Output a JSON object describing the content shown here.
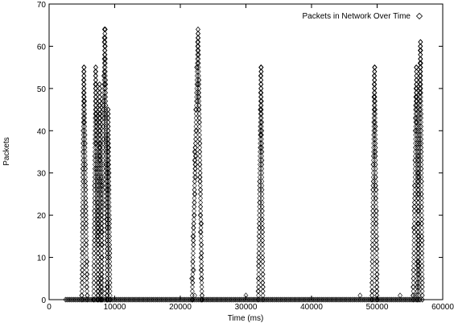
{
  "chart_data": {
    "type": "scatter",
    "title": "",
    "xlabel": "Time (ms)",
    "ylabel": "Packets",
    "xlim": [
      0,
      60000
    ],
    "ylim": [
      0,
      70
    ],
    "x_ticks": [
      0,
      10000,
      20000,
      30000,
      40000,
      50000,
      60000
    ],
    "y_ticks": [
      0,
      10,
      20,
      30,
      40,
      50,
      60,
      70
    ],
    "grid": false,
    "legend_position": "top-right",
    "marker": "diamond",
    "series": [
      {
        "name": "Packets in Network Over Time",
        "bursts": [
          {
            "start": 5000,
            "peak_time": 5300,
            "end": 5800,
            "peak": 55
          },
          {
            "start": 6800,
            "peak_time": 7100,
            "end": 7500,
            "peak": 55
          },
          {
            "start": 7400,
            "peak_time": 7700,
            "end": 8100,
            "peak": 51
          },
          {
            "start": 7900,
            "peak_time": 8500,
            "end": 8900,
            "peak": 64
          },
          {
            "start": 8800,
            "peak_time": 9000,
            "end": 9300,
            "peak": 45
          },
          {
            "start": 21800,
            "peak_time": 22700,
            "end": 23300,
            "peak": 64
          },
          {
            "start": 31900,
            "peak_time": 32300,
            "end": 32600,
            "peak": 55
          },
          {
            "start": 49200,
            "peak_time": 49600,
            "end": 50000,
            "peak": 55
          },
          {
            "start": 55500,
            "peak_time": 56000,
            "end": 56400,
            "peak": 55
          },
          {
            "start": 56100,
            "peak_time": 56600,
            "end": 56900,
            "peak": 61
          }
        ],
        "baseline": {
          "start": 2500,
          "end": 56800,
          "value": 0
        },
        "isolated_points": [
          {
            "x": 30000,
            "y": 1
          },
          {
            "x": 47400,
            "y": 1
          },
          {
            "x": 53500,
            "y": 1
          },
          {
            "x": 55800,
            "y": 1
          },
          {
            "x": 22200,
            "y": 1
          }
        ]
      }
    ]
  }
}
